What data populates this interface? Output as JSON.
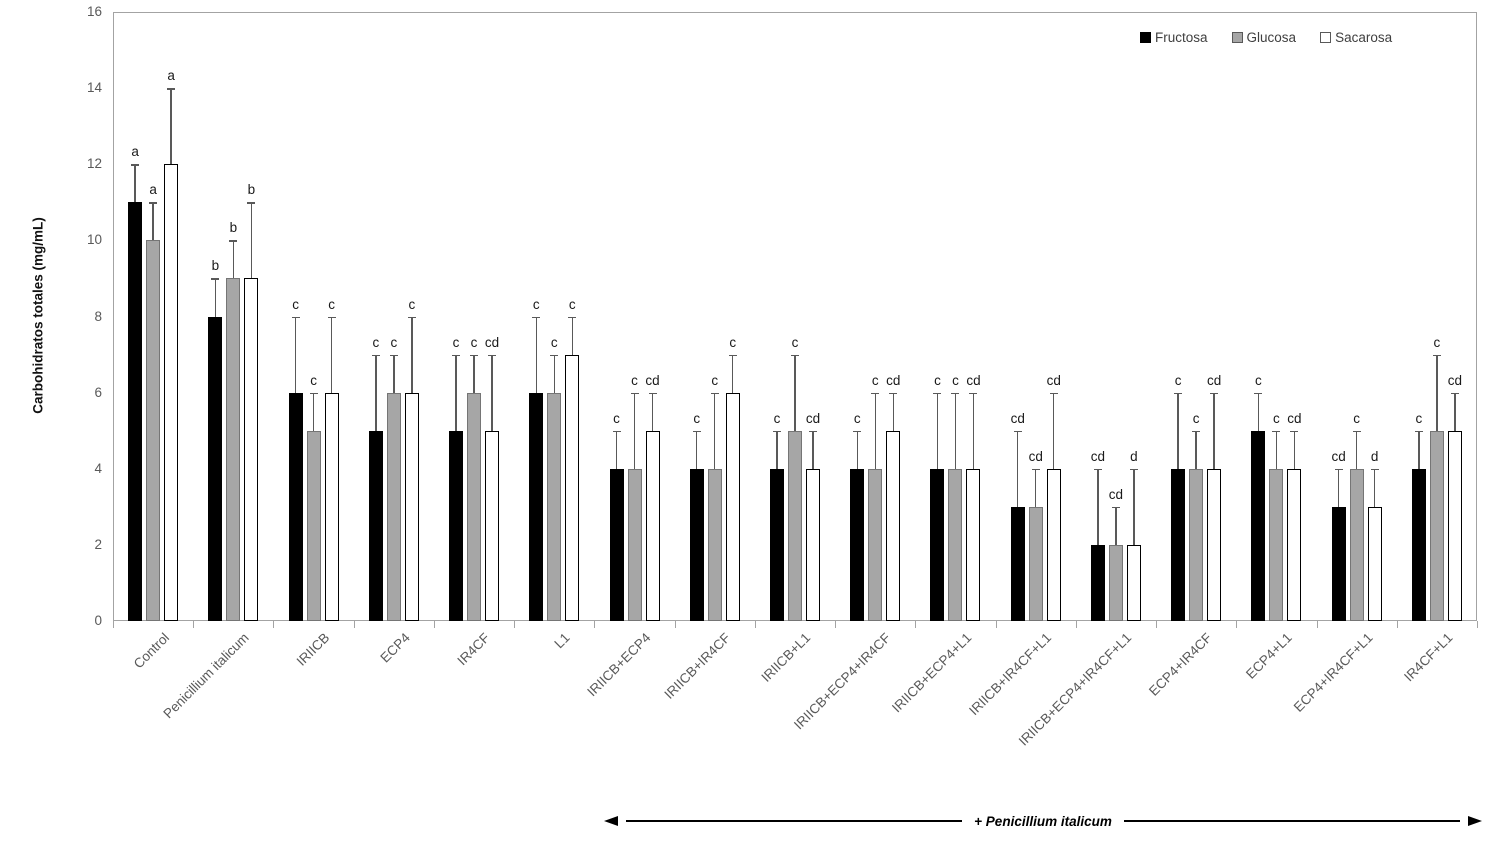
{
  "legend": {
    "items": [
      {
        "label": "Fructosa",
        "color": "#000000"
      },
      {
        "label": "Glucosa",
        "color": "#a6a6a6"
      },
      {
        "label": "Sacarosa",
        "color": "#ffffff"
      }
    ]
  },
  "chart_data": {
    "type": "bar",
    "title": "",
    "xlabel": "",
    "ylabel": "Carbohidratos totales (mg/mL)",
    "ylim": [
      0,
      16
    ],
    "ytick_step": 2,
    "grid": false,
    "legend_position": "top-right-inside",
    "error_bars": "plus-direction",
    "categories": [
      "Control",
      "Penicillium italicum",
      "IRIICB",
      "ECP4",
      "IR4CF",
      "L1",
      "IRIICB+ECP4",
      "IRIICB+IR4CF",
      "IRIICB+L1",
      "IRIICB+ECP4+IR4CF",
      "IRIICB+ECP4+L1",
      "IRIICB+IR4CF+L1",
      "IRIICB+ECP4+IR4CF+L1",
      "ECP4+IR4CF",
      "ECP4+L1",
      "ECP4+IR4CF+L1",
      "IR4CF+L1"
    ],
    "series": [
      {
        "name": "Fructosa",
        "fill": "#000000",
        "values": [
          11,
          8,
          6,
          5,
          5,
          6,
          4,
          4,
          4,
          4,
          4,
          3,
          2,
          4,
          5,
          3,
          4
        ],
        "errors": [
          1,
          1,
          2,
          2,
          2,
          2,
          1,
          1,
          1,
          1,
          2,
          2,
          2,
          2,
          1,
          1,
          1
        ],
        "letters": [
          "a",
          "b",
          "c",
          "c",
          "c",
          "c",
          "c",
          "c",
          "c",
          "c",
          "c",
          "cd",
          "cd",
          "c",
          "c",
          "cd",
          "c"
        ]
      },
      {
        "name": "Glucosa",
        "fill": "#a6a6a6",
        "values": [
          10,
          9,
          5,
          6,
          6,
          6,
          4,
          4,
          5,
          4,
          4,
          3,
          2,
          4,
          4,
          4,
          5
        ],
        "errors": [
          1,
          1,
          1,
          1,
          1,
          1,
          2,
          2,
          2,
          2,
          2,
          1,
          1,
          1,
          1,
          1,
          2
        ],
        "letters": [
          "a",
          "b",
          "c",
          "c",
          "c",
          "c",
          "c",
          "c",
          "c",
          "c",
          "c",
          "cd",
          "cd",
          "c",
          "c",
          "c",
          "c"
        ]
      },
      {
        "name": "Sacarosa",
        "fill": "#ffffff",
        "values": [
          12,
          9,
          6,
          6,
          5,
          7,
          5,
          6,
          4,
          5,
          4,
          4,
          2,
          4,
          4,
          3,
          5
        ],
        "errors": [
          2,
          2,
          2,
          2,
          2,
          1,
          1,
          1,
          1,
          1,
          2,
          2,
          2,
          2,
          1,
          1,
          1
        ],
        "letters": [
          "a",
          "b",
          "c",
          "c",
          "cd",
          "c",
          "cd",
          "c",
          "cd",
          "cd",
          "cd",
          "cd",
          "d",
          "cd",
          "cd",
          "d",
          "cd"
        ]
      }
    ],
    "annotation": {
      "text": "+ Penicillium italicum",
      "span_categories_from": "IRIICB+ECP4",
      "span_categories_to": "IR4CF+L1"
    }
  }
}
